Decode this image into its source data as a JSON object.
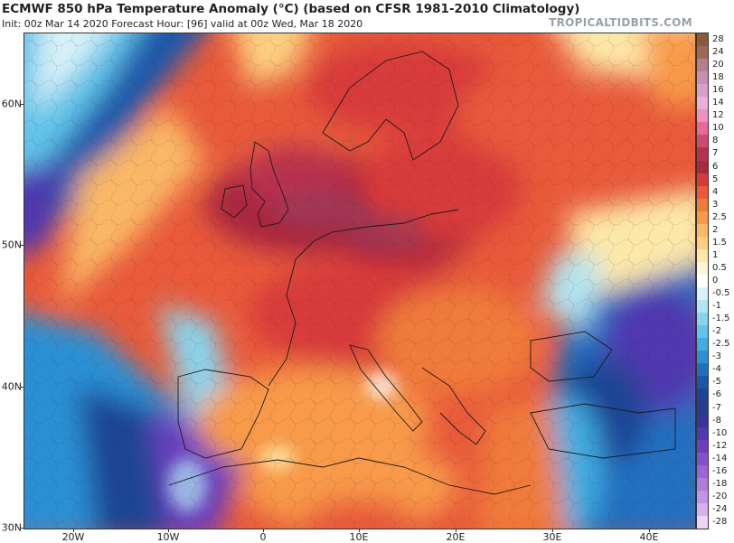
{
  "header": {
    "title": "ECMWF 850 hPa Temperature Anomaly (°C) (based on CFSR 1981-2010 Climatology)",
    "subtitle": "Init: 00z Mar 14 2020   Forecast Hour: [96]   valid at 00z Wed, Mar 18 2020",
    "brand": "TROPICALTIDBITS.COM"
  },
  "map": {
    "region": "Europe",
    "variable": "850 hPa Temperature Anomaly (°C)",
    "lat_labels": [
      "60N",
      "50N",
      "40N",
      "30N"
    ],
    "lon_labels": [
      "20W",
      "10W",
      "0",
      "10E",
      "20E",
      "30E",
      "40E"
    ]
  },
  "colorbar": {
    "labels": [
      "28",
      "24",
      "20",
      "18",
      "16",
      "14",
      "12",
      "10",
      "8",
      "7",
      "6",
      "5",
      "4",
      "3",
      "2.5",
      "2",
      "1.5",
      "1",
      "0.5",
      "0",
      "-0.5",
      "-1",
      "-1.5",
      "-2",
      "-2.5",
      "-3",
      "-4",
      "-5",
      "-6",
      "-7",
      "-8",
      "-10",
      "-12",
      "-14",
      "-16",
      "-18",
      "-20",
      "-24",
      "-28"
    ],
    "colors": [
      "#8a5a3a",
      "#9c6a55",
      "#b48090",
      "#c890b0",
      "#d8a0c8",
      "#e8b0d8",
      "#f090c0",
      "#e86a9a",
      "#d04a70",
      "#b83050",
      "#a82840",
      "#d83a3a",
      "#e85a3a",
      "#f07a3a",
      "#f89a4a",
      "#fab866",
      "#fcd080",
      "#fde8a8",
      "#fff6d8",
      "#ffffff",
      "#d8f2f8",
      "#b0e6f2",
      "#88d6ee",
      "#60c4ea",
      "#40ace0",
      "#2c90d4",
      "#2070c0",
      "#1c58aa",
      "#1c4494",
      "#283a8a",
      "#38349a",
      "#5038b0",
      "#6a40c0",
      "#8450cc",
      "#9c64d4",
      "#b07cdc",
      "#c494e4",
      "#d8b0ec",
      "#ecd4f4"
    ]
  }
}
